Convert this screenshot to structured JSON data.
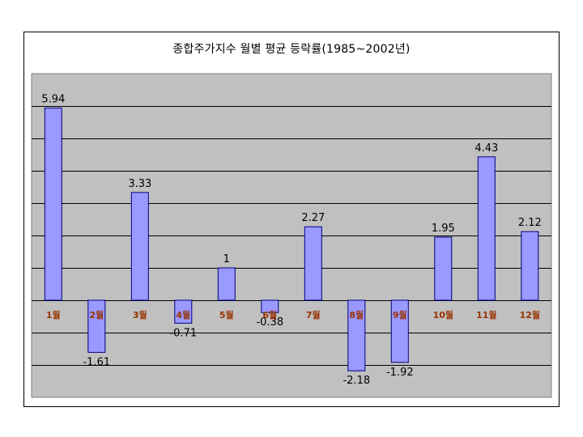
{
  "chart_data": {
    "type": "bar",
    "title": "종합주가지수 월별 평균 등락률(1985~2002년)",
    "categories": [
      "1월",
      "2월",
      "3월",
      "4월",
      "5월",
      "6월",
      "7월",
      "8월",
      "9월",
      "10월",
      "11월",
      "12월"
    ],
    "values": [
      5.94,
      -1.61,
      3.33,
      -0.71,
      1,
      -0.38,
      2.27,
      -2.18,
      -1.92,
      1.95,
      4.43,
      2.12
    ],
    "value_labels": [
      "5.94",
      "-1.61",
      "3.33",
      "-0.71",
      "1",
      "-0.38",
      "2.27",
      "-2.18",
      "-1.92",
      "1.95",
      "4.43",
      "2.12"
    ],
    "ylim": [
      -3,
      7
    ],
    "grid": true,
    "legend": "none",
    "colors": {
      "plot_bg": "#c0c0c0",
      "bar_fill": "#9999ff",
      "bar_stroke": "#000080",
      "category_label": "#993300",
      "gridline": "#000000"
    }
  }
}
